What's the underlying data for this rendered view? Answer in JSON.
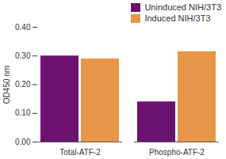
{
  "chart_data": {
    "type": "bar",
    "categories": [
      "Total-ATF-2",
      "Phospho-ATF-2"
    ],
    "series": [
      {
        "name": "Uninduced NIH/3T3",
        "color": "#6b1170",
        "values": [
          0.3,
          0.14
        ]
      },
      {
        "name": "Induced NIH/3T3",
        "color": "#e8954a",
        "values": [
          0.29,
          0.315
        ]
      }
    ],
    "y_label": "OD450 nm",
    "ylim": [
      0,
      0.4
    ],
    "yticks": [
      0,
      0.1,
      0.2,
      0.3,
      0.4
    ],
    "grid": false,
    "legend": "top-right"
  }
}
